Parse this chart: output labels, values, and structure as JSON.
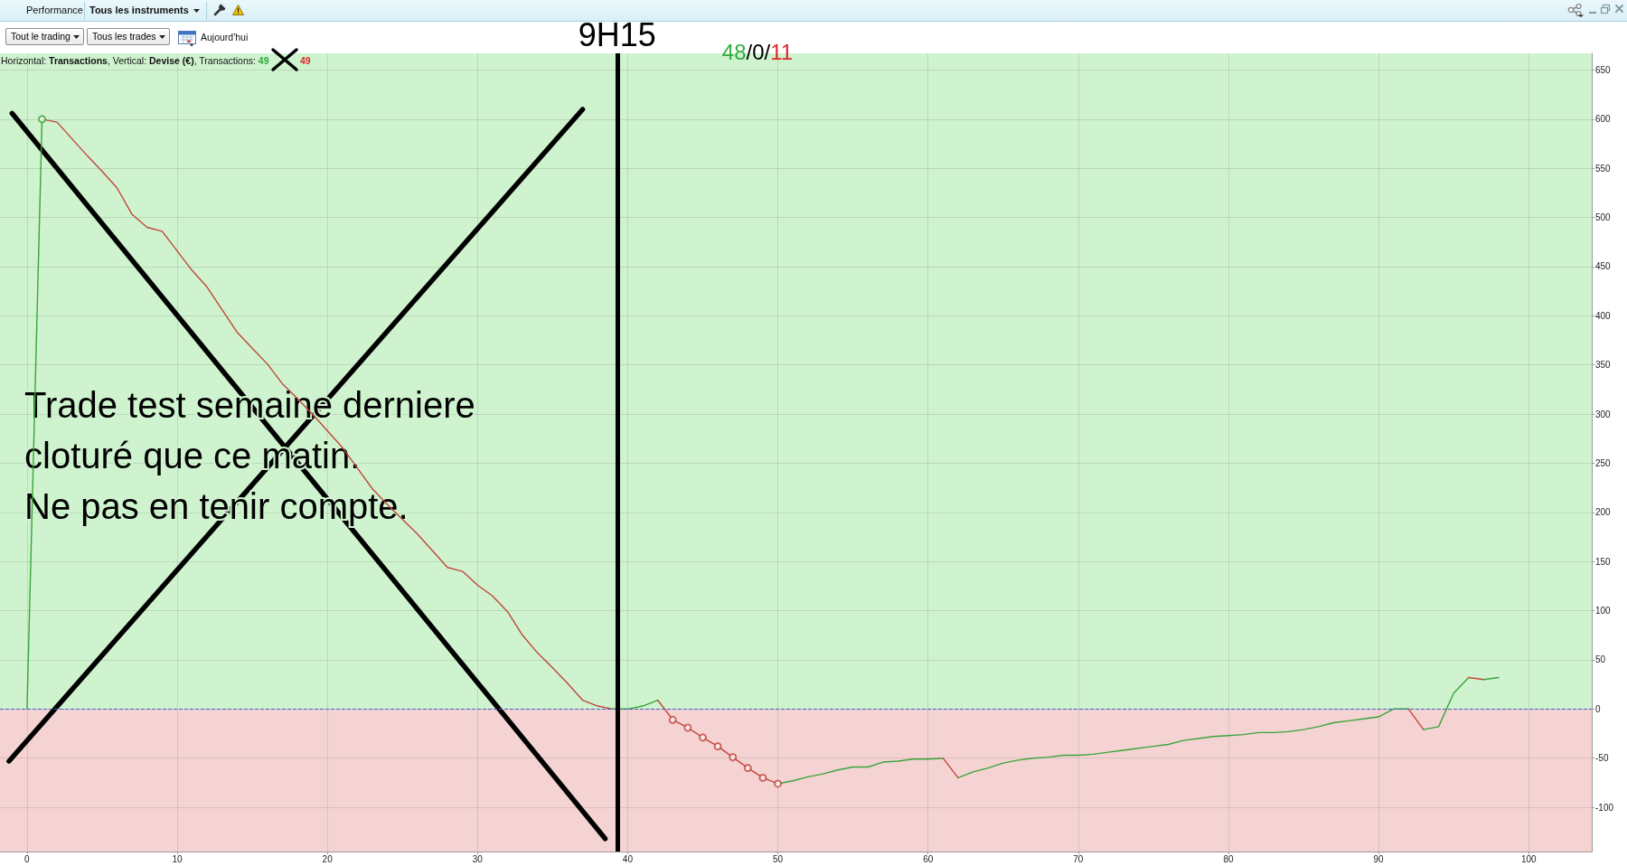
{
  "chart_data": {
    "type": "line",
    "subtitle": "Horizontal: Transactions, Vertical: Devise (€), Transactions: 49",
    "annotations": [
      "Performance",
      "Tous les instruments",
      "Tout le trading",
      "Tous les trades",
      "Aujourd'hui",
      "49",
      "48/0/11",
      "Trade test semaine derniere\ncloturé que ce matin.\nNe pas en tenir compte."
    ],
    "xlim": [
      -1.8,
      104.2
    ],
    "xticks": [
      0,
      10,
      20,
      30,
      40,
      50,
      60,
      70,
      80,
      90,
      100
    ],
    "ylim": [
      -145,
      667
    ],
    "yticks": [
      -100,
      -50,
      0,
      50,
      100,
      150,
      200,
      250,
      300,
      350,
      400,
      450,
      500,
      550,
      600,
      650
    ],
    "grid": true,
    "bands": [
      {
        "axis": "y",
        "from": 0,
        "to": 667,
        "color": "#cff3cf"
      },
      {
        "axis": "y",
        "from": -145,
        "to": 0,
        "color": "#f5d3d3"
      }
    ],
    "ref_lines": [
      {
        "axis": "y",
        "value": 0,
        "color": "#4060c0",
        "line_style": "dashed"
      },
      {
        "axis": "x",
        "value": 39.3,
        "label": "9H15",
        "color": "#000000",
        "line_style": "solid"
      }
    ],
    "series": [
      {
        "color": "#3aa53a",
        "x": [
          0,
          1
        ],
        "values": [
          0,
          600
        ]
      },
      {
        "color": "#c0463c",
        "x": [
          1,
          2,
          3,
          4,
          5,
          6,
          7,
          8,
          9,
          10,
          11,
          12,
          13,
          14,
          15,
          16,
          17,
          18,
          19,
          20,
          21,
          22,
          23,
          24,
          25,
          26,
          27,
          28,
          29,
          30,
          31,
          32,
          33,
          34,
          35,
          36,
          37,
          38,
          39
        ],
        "values": [
          600,
          597,
          580,
          563,
          547,
          530,
          503,
          490,
          486,
          466,
          446,
          429,
          406,
          383,
          367,
          351,
          331,
          316,
          300,
          283,
          266,
          245,
          224,
          208,
          193,
          178,
          161,
          144,
          140,
          126,
          115,
          99,
          75,
          57,
          42,
          26,
          9,
          3,
          0
        ]
      },
      {
        "color": "#3aa53a",
        "x": [
          39,
          40,
          41,
          42
        ],
        "values": [
          0,
          0,
          3,
          9
        ]
      },
      {
        "color": "#c0463c",
        "x": [
          42,
          43,
          44,
          45,
          46,
          47,
          48,
          49,
          50
        ],
        "values": [
          9,
          -11,
          -19,
          -29,
          -38,
          -49,
          -60,
          -70,
          -76
        ]
      },
      {
        "color": "#3aa53a",
        "x": [
          50,
          51,
          52,
          53,
          54,
          55,
          56,
          57,
          58,
          59,
          60,
          61
        ],
        "values": [
          -76,
          -73,
          -69,
          -66,
          -62,
          -59,
          -59,
          -54,
          -53,
          -51,
          -51,
          -50
        ]
      },
      {
        "color": "#c0463c",
        "x": [
          61,
          62
        ],
        "values": [
          -50,
          -70
        ]
      },
      {
        "color": "#3aa53a",
        "x": [
          62,
          63,
          64,
          65,
          66,
          67,
          68,
          69,
          70,
          71,
          72,
          73,
          74,
          75,
          76,
          77,
          78,
          79,
          80,
          81,
          82,
          83,
          84,
          85,
          86,
          87,
          88,
          89,
          90,
          91,
          92
        ],
        "values": [
          -70,
          -64,
          -60,
          -55,
          -52,
          -50,
          -49,
          -47,
          -47,
          -46,
          -44,
          -42,
          -40,
          -38,
          -36,
          -32,
          -30,
          -28,
          -27,
          -26,
          -24,
          -24,
          -23,
          -21,
          -18,
          -14,
          -12,
          -10,
          -8,
          0,
          0
        ]
      },
      {
        "color": "#c0463c",
        "x": [
          92,
          93
        ],
        "values": [
          0,
          -21
        ]
      },
      {
        "color": "#3aa53a",
        "x": [
          93,
          94,
          95,
          96
        ],
        "values": [
          -21,
          -18,
          16,
          32
        ]
      },
      {
        "color": "#c0463c",
        "x": [
          96,
          97
        ],
        "values": [
          32,
          30
        ]
      },
      {
        "color": "#3aa53a",
        "x": [
          97,
          98
        ],
        "values": [
          30,
          32
        ]
      },
      {
        "type": "scatter",
        "color": "#3aa53a",
        "marker": "circle",
        "x": [
          1
        ],
        "values": [
          600
        ]
      },
      {
        "type": "scatter",
        "color": "#c0463c",
        "marker": "circle",
        "x": [
          43,
          44,
          45,
          46,
          47,
          48,
          49,
          50
        ],
        "values": [
          -11,
          -19,
          -29,
          -38,
          -49,
          -60,
          -70,
          -76
        ]
      },
      {
        "color": "#000000",
        "x": [
          -1.0,
          38.5
        ],
        "values": [
          606,
          -132
        ]
      },
      {
        "color": "#000000",
        "x": [
          -1.2,
          37.0
        ],
        "values": [
          -53,
          610
        ]
      }
    ]
  }
}
